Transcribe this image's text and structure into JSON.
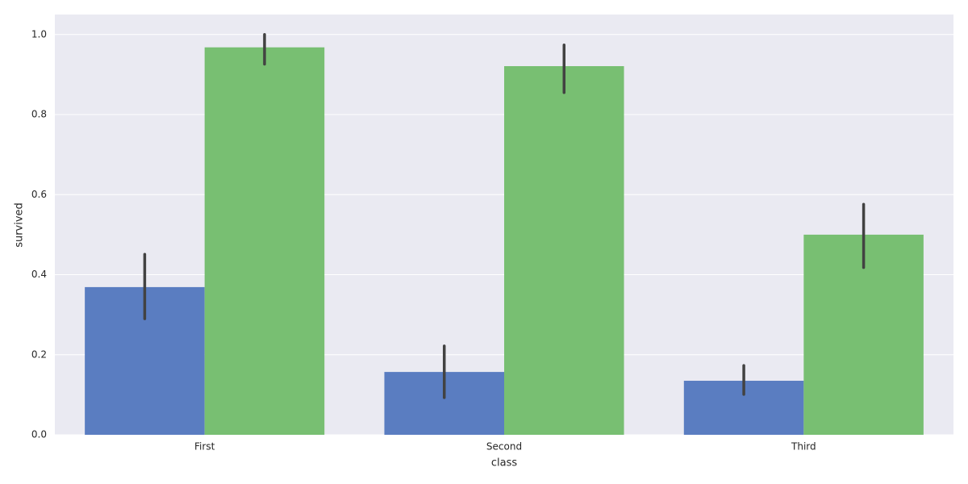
{
  "chart_data": {
    "type": "bar",
    "x_label": "class",
    "y_label": "survived",
    "categories": [
      "First",
      "Second",
      "Third"
    ],
    "series": [
      {
        "color": "#5a7dc1",
        "values": [
          0.369,
          0.157,
          0.135
        ],
        "ci_low": [
          0.29,
          0.093,
          0.101
        ],
        "ci_high": [
          0.451,
          0.222,
          0.173
        ]
      },
      {
        "color": "#78bf72",
        "values": [
          0.968,
          0.921,
          0.5
        ],
        "ci_low": [
          0.926,
          0.855,
          0.418
        ],
        "ci_high": [
          1.0,
          0.974,
          0.576
        ]
      }
    ],
    "error_color": "#424242",
    "ylim": [
      0,
      1.05
    ],
    "yticks": [
      {
        "value": 0,
        "label": "0.0"
      },
      {
        "value": 0.2,
        "label": "0.2"
      },
      {
        "value": 0.4,
        "label": "0.4"
      },
      {
        "value": 0.6,
        "label": "0.6"
      },
      {
        "value": 0.8,
        "label": "0.8"
      },
      {
        "value": 1,
        "label": "1.0"
      }
    ],
    "grid": true,
    "background": "#eaeaf2"
  }
}
